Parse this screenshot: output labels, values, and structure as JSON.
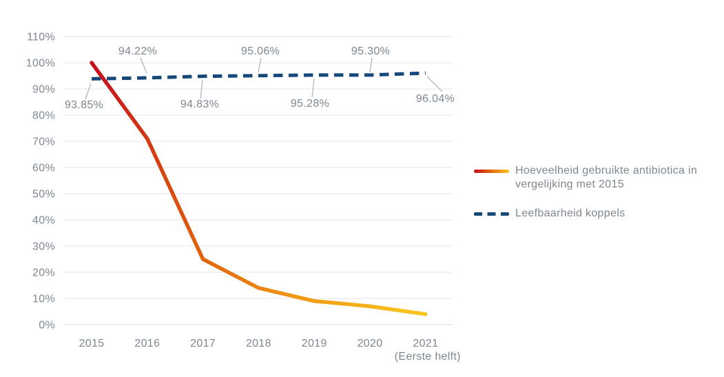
{
  "chart_data": {
    "type": "line",
    "title": "",
    "categories": [
      "2015",
      "2016",
      "2017",
      "2018",
      "2019",
      "2020",
      "2021"
    ],
    "x_note": "(Eerste helft)",
    "y_ticks": [
      "110%",
      "100%",
      "90%",
      "80%",
      "70%",
      "60%",
      "50%",
      "40%",
      "30%",
      "20%",
      "10%",
      "0%"
    ],
    "ylim": [
      0,
      110
    ],
    "grid": "horizontal-only",
    "legend_position": "right",
    "series": [
      {
        "name": "Hoeveelheid gebruikte antibiotica in vergelijking met 2015",
        "style": "solid-gradient",
        "colors": [
          "#c30d1e",
          "#e2650c",
          "#f9c71e"
        ],
        "values": [
          100,
          71,
          25,
          14,
          9,
          7,
          4
        ],
        "unit": "%"
      },
      {
        "name": "Leefbaarheid koppels",
        "style": "dashed",
        "color": "#15497c",
        "values": [
          93.85,
          94.22,
          94.83,
          95.06,
          95.28,
          95.3,
          96.04
        ],
        "point_labels": [
          "93.85%",
          "94.22%",
          "94.83%",
          "95.06%",
          "95.28%",
          "95.30%",
          "96.04%"
        ],
        "unit": "%"
      }
    ]
  },
  "colors": {
    "accent_red": "#c30d1e",
    "accent_orange": "#e2650c",
    "accent_yellow": "#f9c71e",
    "accent_navy": "#15497c",
    "text_gray": "#7d8791",
    "gridline": "#e4e6e8"
  }
}
